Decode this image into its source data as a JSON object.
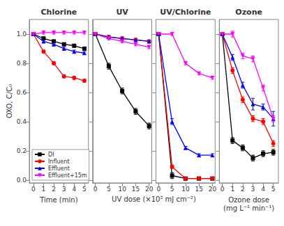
{
  "chart_data": [
    {
      "type": "line",
      "title": "Chlorine",
      "xlabel": "Time (min)",
      "ylabel": "OXO, C/C₀",
      "x": [
        0,
        1,
        2,
        3,
        4,
        5
      ],
      "series": [
        {
          "name": "DI",
          "color": "black",
          "marker": "square",
          "values": [
            1.0,
            0.97,
            0.95,
            0.93,
            0.92,
            0.9
          ],
          "errors": [
            0.0,
            0.01,
            0.01,
            0.01,
            0.01,
            0.01
          ]
        },
        {
          "name": "Influent",
          "color": "red",
          "marker": "circle",
          "values": [
            1.0,
            0.88,
            0.8,
            0.71,
            0.7,
            0.68
          ],
          "errors": [
            0.0,
            0.01,
            0.01,
            0.01,
            0.01,
            0.01
          ]
        },
        {
          "name": "Effluent",
          "color": "blue",
          "marker": "triangle-up",
          "values": [
            1.0,
            0.95,
            0.93,
            0.9,
            0.88,
            0.87
          ],
          "errors": [
            0.0,
            0.01,
            0.01,
            0.01,
            0.01,
            0.01
          ]
        },
        {
          "name": "Effluent+15m",
          "color": "magenta",
          "marker": "triangle-down",
          "values": [
            1.0,
            1.01,
            1.01,
            1.01,
            1.01,
            1.01
          ],
          "errors": [
            0.0,
            0.01,
            0.01,
            0.01,
            0.01,
            0.01
          ]
        }
      ],
      "xlim": [
        -0.4,
        5.4
      ],
      "xticks": [
        0,
        1,
        2,
        3,
        4,
        5
      ],
      "ylim": [
        -0.02,
        1.1
      ],
      "yticks": [
        {
          "value": 0.0,
          "label": "0.0"
        },
        0.2,
        0.4,
        0.6,
        0.8,
        {
          "value": 1.0,
          "label": "1.0"
        }
      ],
      "grid": false,
      "legend": "lower left"
    },
    {
      "type": "line",
      "title": "UV",
      "xlabel": "UV dose (×10² mJ cm⁻²)",
      "x": [
        0,
        5,
        10,
        15,
        20
      ],
      "series": [
        {
          "name": "DI",
          "color": "black",
          "marker": "square",
          "values": [
            1.0,
            0.78,
            0.61,
            0.47,
            0.37
          ],
          "errors": [
            0.0,
            0.02,
            0.02,
            0.02,
            0.02
          ]
        },
        {
          "name": "Influent",
          "color": "red",
          "marker": "circle",
          "values": [
            1.0,
            0.98,
            0.97,
            0.96,
            0.95
          ],
          "errors": [
            0.0,
            0.01,
            0.01,
            0.01,
            0.01
          ]
        },
        {
          "name": "Effluent",
          "color": "blue",
          "marker": "triangle-up",
          "values": [
            1.0,
            0.98,
            0.97,
            0.96,
            0.95
          ],
          "errors": [
            0.0,
            0.01,
            0.01,
            0.01,
            0.01
          ]
        },
        {
          "name": "Effluent+15m",
          "color": "magenta",
          "marker": "triangle-down",
          "values": [
            1.0,
            0.97,
            0.95,
            0.93,
            0.91
          ],
          "errors": [
            0.0,
            0.01,
            0.01,
            0.01,
            0.01
          ]
        }
      ],
      "xlim": [
        -1,
        21
      ],
      "xticks": [
        0,
        5,
        10,
        15,
        20
      ],
      "ylim": [
        -0.02,
        1.1
      ],
      "yticks": [
        {
          "value": 0.0,
          "label": "0.0"
        },
        0.2,
        0.4,
        0.6,
        0.8,
        {
          "value": 1.0,
          "label": "1.0"
        }
      ],
      "grid": false,
      "tick_labels": "x"
    },
    {
      "type": "line",
      "title": "UV/Chlorine",
      "x": [
        0,
        5,
        10,
        15,
        20
      ],
      "series": [
        {
          "name": "DI",
          "color": "black",
          "marker": "square",
          "values": [
            1.0,
            0.03,
            0.01,
            0.01,
            0.01
          ],
          "errors": [
            0.0,
            0.02,
            0.01,
            0.01,
            0.01
          ]
        },
        {
          "name": "Influent",
          "color": "red",
          "marker": "circle",
          "values": [
            1.0,
            0.09,
            0.01,
            0.01,
            0.01
          ],
          "errors": [
            0.0,
            0.01,
            0.01,
            0.01,
            0.01
          ]
        },
        {
          "name": "Effluent",
          "color": "blue",
          "marker": "triangle-up",
          "values": [
            1.0,
            0.4,
            0.22,
            0.17,
            0.17
          ],
          "errors": [
            0.0,
            0.02,
            0.01,
            0.01,
            0.01
          ]
        },
        {
          "name": "Effluent+15m",
          "color": "magenta",
          "marker": "triangle-down",
          "values": [
            1.0,
            1.0,
            0.8,
            0.73,
            0.7
          ],
          "errors": [
            0.0,
            0.01,
            0.01,
            0.01,
            0.01
          ]
        }
      ],
      "xlim": [
        -1,
        21
      ],
      "xticks": [
        0,
        5,
        10,
        15,
        20
      ],
      "ylim": [
        -0.02,
        1.1
      ],
      "yticks": [
        {
          "value": 0.0,
          "label": "0.0"
        },
        0.2,
        0.4,
        0.6,
        0.8,
        {
          "value": 1.0,
          "label": "1.0"
        }
      ],
      "grid": false,
      "tick_labels": "x"
    },
    {
      "type": "line",
      "title": "Ozone",
      "xlabel": "Ozone dose\n(mg L⁻¹ min⁻¹)",
      "x": [
        0,
        1,
        2,
        3,
        4,
        5
      ],
      "series": [
        {
          "name": "DI",
          "color": "black",
          "marker": "square",
          "values": [
            1.0,
            0.27,
            0.22,
            0.15,
            0.18,
            0.19
          ],
          "errors": [
            0.0,
            0.02,
            0.02,
            0.02,
            0.02,
            0.02
          ]
        },
        {
          "name": "Influent",
          "color": "red",
          "marker": "circle",
          "values": [
            1.0,
            0.75,
            0.55,
            0.42,
            0.4,
            0.25
          ],
          "errors": [
            0.0,
            0.02,
            0.02,
            0.02,
            0.02,
            0.02
          ]
        },
        {
          "name": "Effluent",
          "color": "blue",
          "marker": "triangle-up",
          "values": [
            1.0,
            0.84,
            0.65,
            0.52,
            0.5,
            0.42
          ],
          "errors": [
            0.0,
            0.02,
            0.02,
            0.04,
            0.02,
            0.05
          ]
        },
        {
          "name": "Effluent+15m",
          "color": "magenta",
          "marker": "triangle-down",
          "values": [
            1.0,
            1.0,
            0.85,
            0.83,
            0.63,
            0.42
          ],
          "errors": [
            0.0,
            0.02,
            0.02,
            0.02,
            0.02,
            0.02
          ]
        }
      ],
      "xlim": [
        -0.3,
        5.5
      ],
      "xticks": [
        0,
        1,
        2,
        3,
        4,
        5
      ],
      "ylim": [
        -0.02,
        1.1
      ],
      "yticks": [
        {
          "value": 0.0,
          "label": "0.0"
        },
        0.2,
        0.4,
        0.6,
        0.8,
        {
          "value": 1.0,
          "label": "1.0"
        }
      ],
      "grid": false,
      "tick_labels": "x"
    }
  ]
}
